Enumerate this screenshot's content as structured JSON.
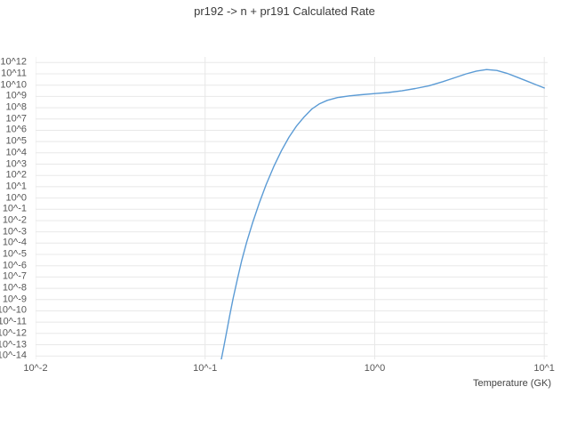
{
  "chart_data": {
    "type": "line",
    "title": "pr192 -> n + pr191 Calculated Rate",
    "xlabel": "Temperature (GK)",
    "ylabel": "",
    "x_scale": "log",
    "y_scale": "log",
    "grid": true,
    "grid_color": "#e8e8e8",
    "background_color": "#ffffff",
    "x_log_range": [
      -2,
      1.02
    ],
    "y_log_range": [
      -14.3,
      12.5
    ],
    "x_ticks": [
      {
        "log": -2,
        "label": "10^-2"
      },
      {
        "log": -1,
        "label": "10^-1"
      },
      {
        "log": 0,
        "label": "10^0"
      },
      {
        "log": 1,
        "label": "10^1"
      }
    ],
    "y_ticks": [
      {
        "log": 12,
        "label": "10^12"
      },
      {
        "log": 11,
        "label": "10^11"
      },
      {
        "log": 10,
        "label": "10^10"
      },
      {
        "log": 9,
        "label": "10^9"
      },
      {
        "log": 8,
        "label": "10^8"
      },
      {
        "log": 7,
        "label": "10^7"
      },
      {
        "log": 6,
        "label": "10^6"
      },
      {
        "log": 5,
        "label": "10^5"
      },
      {
        "log": 4,
        "label": "10^4"
      },
      {
        "log": 3,
        "label": "10^3"
      },
      {
        "log": 2,
        "label": "10^2"
      },
      {
        "log": 1,
        "label": "10^1"
      },
      {
        "log": 0,
        "label": "10^0"
      },
      {
        "log": -1,
        "label": "10^-1"
      },
      {
        "log": -2,
        "label": "10^-2"
      },
      {
        "log": -3,
        "label": "10^-3"
      },
      {
        "log": -4,
        "label": "10^-4"
      },
      {
        "log": -5,
        "label": "10^-5"
      },
      {
        "log": -6,
        "label": "10^-6"
      },
      {
        "log": -7,
        "label": "10^-7"
      },
      {
        "log": -8,
        "label": "10^-8"
      },
      {
        "log": -9,
        "label": "10^-9"
      },
      {
        "log": -10,
        "label": "10^-10"
      },
      {
        "log": -11,
        "label": "10^-11"
      },
      {
        "log": -12,
        "label": "10^-12"
      },
      {
        "log": -13,
        "label": "10^-13"
      },
      {
        "log": -14,
        "label": "10^-14"
      }
    ],
    "series": [
      {
        "name": "calculated-rate",
        "color": "#5b9bd5",
        "points_log10": [
          [
            -0.905,
            -14.35
          ],
          [
            -0.89,
            -13.2
          ],
          [
            -0.875,
            -12.0
          ],
          [
            -0.855,
            -10.4
          ],
          [
            -0.835,
            -8.9
          ],
          [
            -0.81,
            -7.2
          ],
          [
            -0.785,
            -5.6
          ],
          [
            -0.755,
            -3.9
          ],
          [
            -0.72,
            -2.2
          ],
          [
            -0.68,
            -0.4
          ],
          [
            -0.64,
            1.2
          ],
          [
            -0.595,
            2.8
          ],
          [
            -0.55,
            4.2
          ],
          [
            -0.505,
            5.4
          ],
          [
            -0.46,
            6.4
          ],
          [
            -0.415,
            7.2
          ],
          [
            -0.37,
            7.9
          ],
          [
            -0.325,
            8.35
          ],
          [
            -0.28,
            8.65
          ],
          [
            -0.22,
            8.9
          ],
          [
            -0.15,
            9.05
          ],
          [
            -0.08,
            9.15
          ],
          [
            0.0,
            9.25
          ],
          [
            0.08,
            9.35
          ],
          [
            0.16,
            9.5
          ],
          [
            0.24,
            9.7
          ],
          [
            0.32,
            9.95
          ],
          [
            0.4,
            10.3
          ],
          [
            0.47,
            10.65
          ],
          [
            0.54,
            11.0
          ],
          [
            0.6,
            11.25
          ],
          [
            0.66,
            11.38
          ],
          [
            0.72,
            11.3
          ],
          [
            0.78,
            11.05
          ],
          [
            0.84,
            10.7
          ],
          [
            0.9,
            10.35
          ],
          [
            0.95,
            10.05
          ],
          [
            1.0,
            9.75
          ]
        ]
      }
    ]
  }
}
